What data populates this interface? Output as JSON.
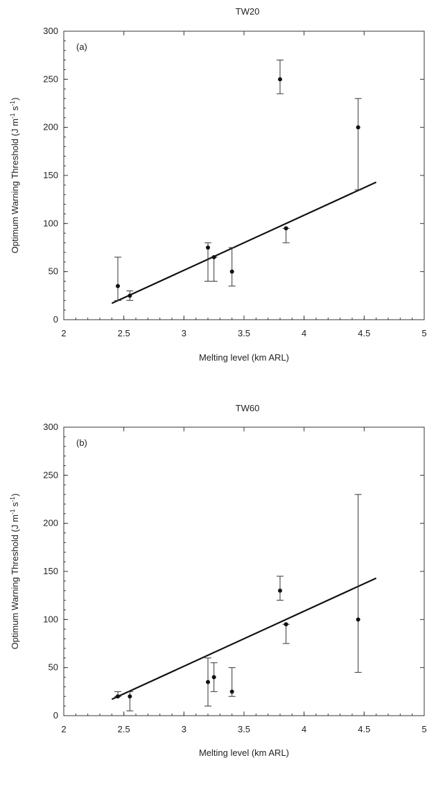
{
  "chart_data": [
    {
      "type": "scatter",
      "title": "TW20",
      "panel_label": "(a)",
      "xlabel": "Melting level  (km ARL)",
      "ylabel_main": "Optimum Warning Threshold  (J m",
      "ylabel_sup1": "-1",
      "ylabel_mid": " s",
      "ylabel_sup2": "-1",
      "ylabel_end": ")",
      "xlim": [
        2,
        5
      ],
      "ylim": [
        0,
        300
      ],
      "xticks": [
        2,
        2.5,
        3,
        3.5,
        4,
        4.5,
        5
      ],
      "xtick_labels": [
        "2",
        "2.5",
        "3",
        "3.5",
        "4",
        "4.5",
        "5"
      ],
      "yticks": [
        0,
        50,
        100,
        150,
        200,
        250,
        300
      ],
      "ytick_labels": [
        "0",
        "50",
        "100",
        "150",
        "200",
        "250",
        "300"
      ],
      "grid": false,
      "points": [
        {
          "x": 2.45,
          "y": 35,
          "ylow": 20,
          "yhigh": 65
        },
        {
          "x": 2.55,
          "y": 25,
          "ylow": 20,
          "yhigh": 30
        },
        {
          "x": 3.2,
          "y": 75,
          "ylow": 40,
          "yhigh": 80
        },
        {
          "x": 3.25,
          "y": 65,
          "ylow": 40,
          "yhigh": 65
        },
        {
          "x": 3.4,
          "y": 50,
          "ylow": 35,
          "yhigh": 75
        },
        {
          "x": 3.8,
          "y": 250,
          "ylow": 235,
          "yhigh": 270
        },
        {
          "x": 3.85,
          "y": 95,
          "ylow": 80,
          "yhigh": 95
        },
        {
          "x": 4.45,
          "y": 200,
          "ylow": 135,
          "yhigh": 230
        }
      ],
      "fit_line": {
        "x": [
          2.4,
          4.6
        ],
        "y": [
          17,
          143
        ]
      }
    },
    {
      "type": "scatter",
      "title": "TW60",
      "panel_label": "(b)",
      "xlabel": "Melting level  (km ARL)",
      "ylabel_main": "Optimum Warning Threshold  (J m",
      "ylabel_sup1": "-1",
      "ylabel_mid": " s",
      "ylabel_sup2": "-1",
      "ylabel_end": ")",
      "xlim": [
        2,
        5
      ],
      "ylim": [
        0,
        300
      ],
      "xticks": [
        2,
        2.5,
        3,
        3.5,
        4,
        4.5,
        5
      ],
      "xtick_labels": [
        "2",
        "2.5",
        "3",
        "3.5",
        "4",
        "4.5",
        "5"
      ],
      "yticks": [
        0,
        50,
        100,
        150,
        200,
        250,
        300
      ],
      "ytick_labels": [
        "0",
        "50",
        "100",
        "150",
        "200",
        "250",
        "300"
      ],
      "grid": false,
      "points": [
        {
          "x": 2.45,
          "y": 20,
          "ylow": 20,
          "yhigh": 25
        },
        {
          "x": 2.55,
          "y": 20,
          "ylow": 5,
          "yhigh": 25
        },
        {
          "x": 3.2,
          "y": 35,
          "ylow": 10,
          "yhigh": 60
        },
        {
          "x": 3.25,
          "y": 40,
          "ylow": 25,
          "yhigh": 55
        },
        {
          "x": 3.4,
          "y": 25,
          "ylow": 20,
          "yhigh": 50
        },
        {
          "x": 3.8,
          "y": 130,
          "ylow": 120,
          "yhigh": 145
        },
        {
          "x": 3.85,
          "y": 95,
          "ylow": 75,
          "yhigh": 95
        },
        {
          "x": 4.45,
          "y": 100,
          "ylow": 45,
          "yhigh": 230
        }
      ],
      "fit_line": {
        "x": [
          2.4,
          4.6
        ],
        "y": [
          17,
          143
        ]
      }
    }
  ]
}
